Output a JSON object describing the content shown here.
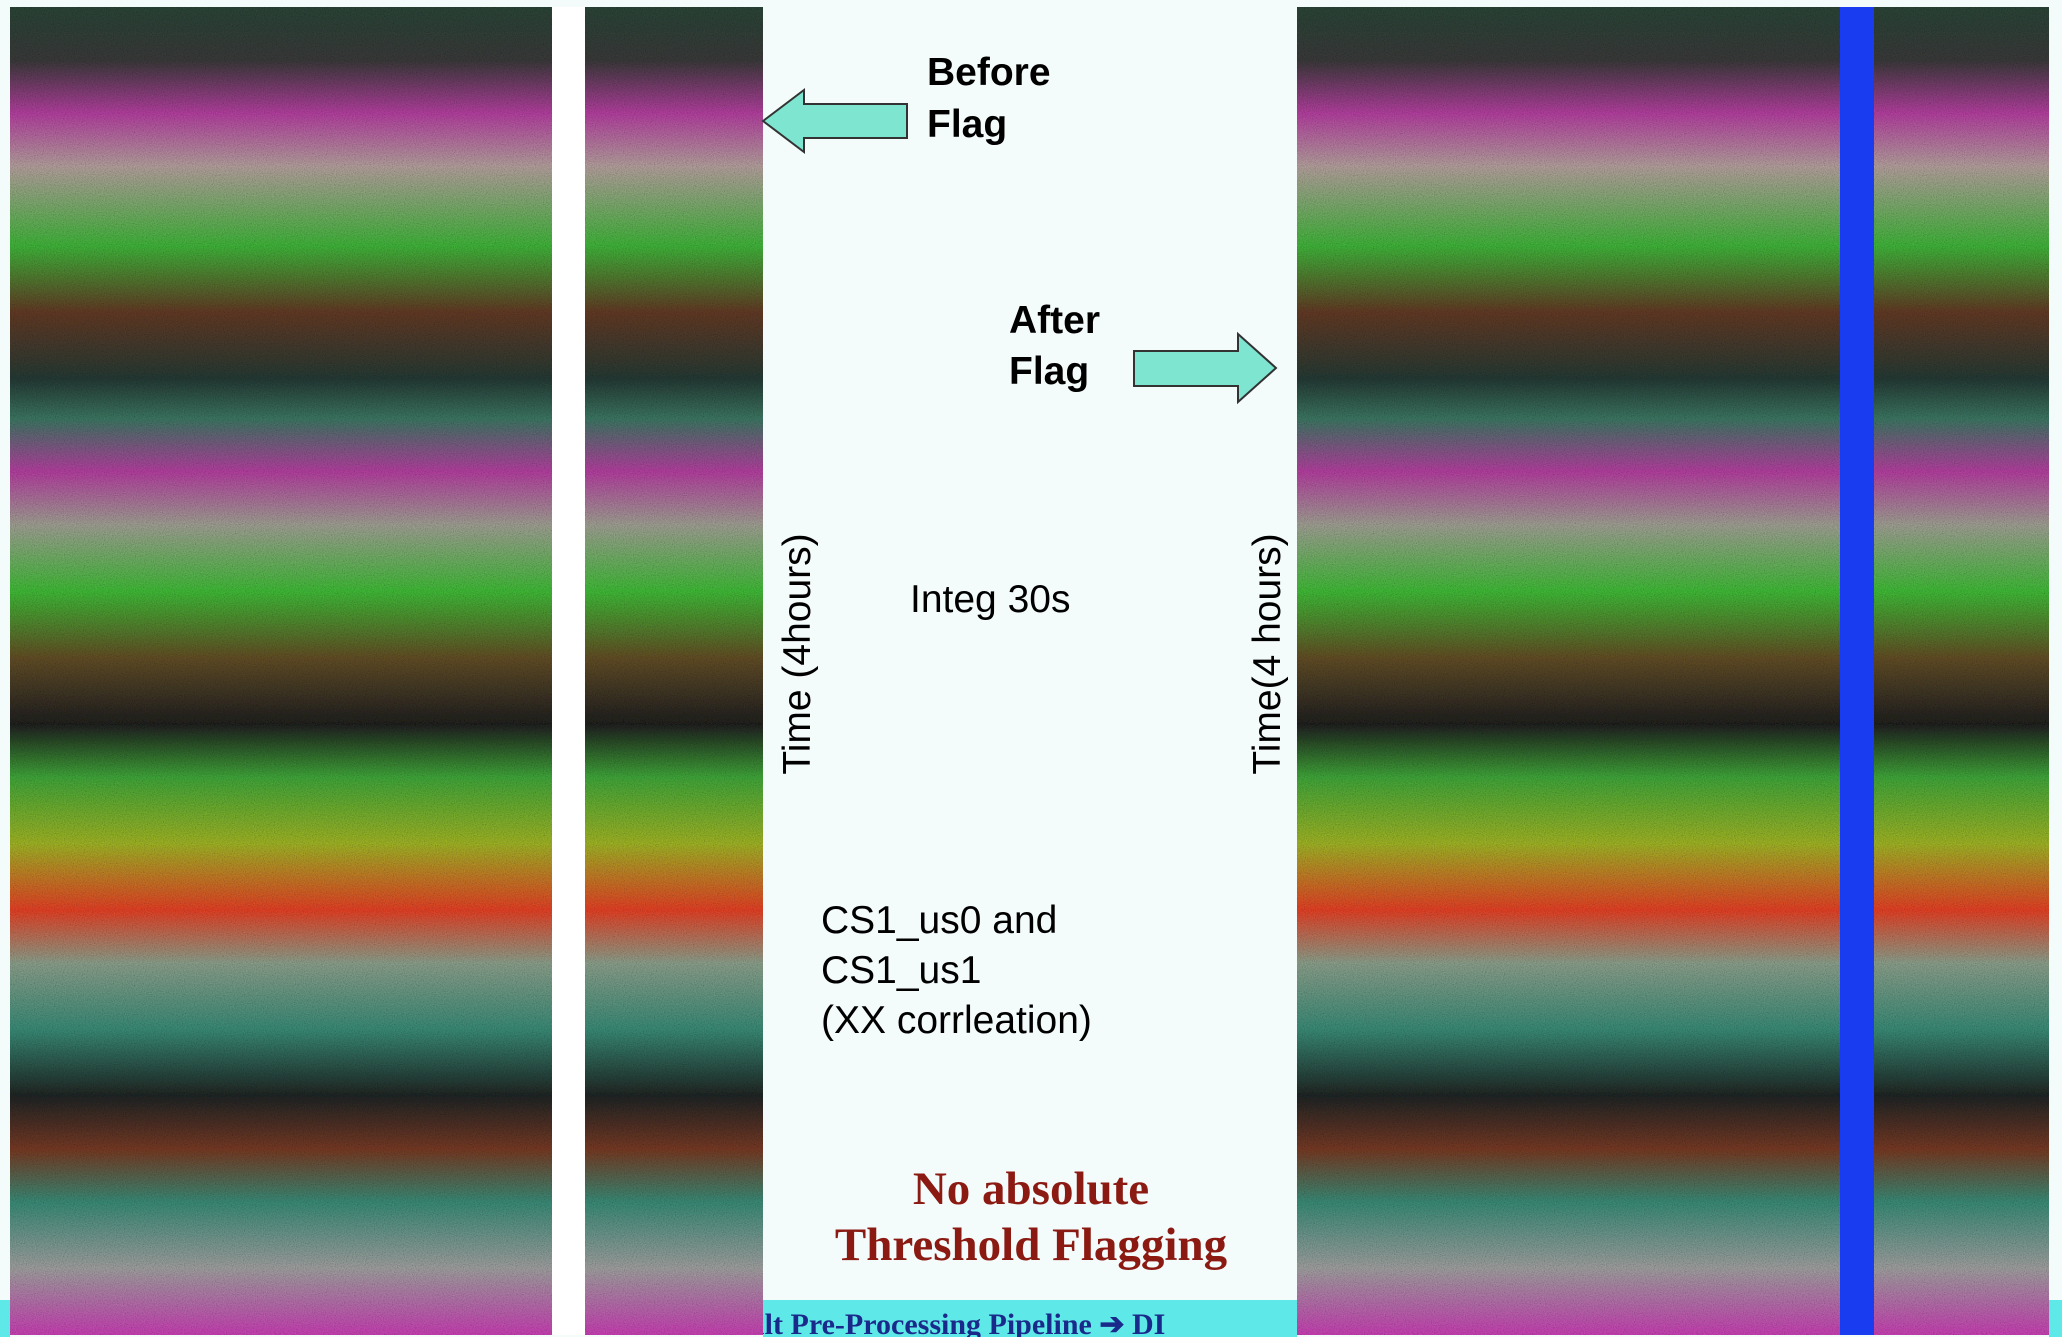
{
  "before_label": [
    "Before",
    "Flag"
  ],
  "after_label": [
    "After",
    "Flag"
  ],
  "left_axis_label": "Time (4hours)",
  "right_axis_label": "Time(4 hours)",
  "integration": "Integ 30s",
  "correlation": [
    "CS1_us0 and",
    "CS1_us1",
    "(XX corrleation)"
  ],
  "headline": [
    "No absolute",
    "Threshold Flagging"
  ],
  "footer": "ult Pre-Processing Pipeline ➔ DI"
}
